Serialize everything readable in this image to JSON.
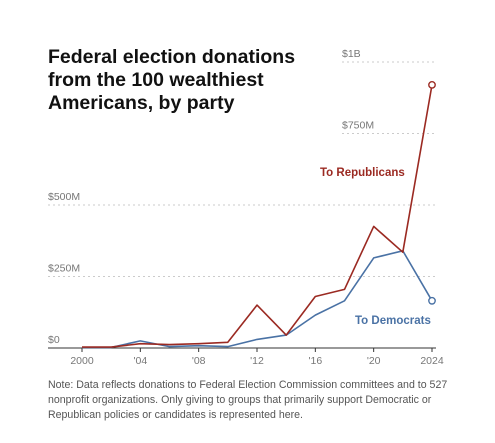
{
  "chart_data": {
    "type": "line",
    "title": "Federal election donations from the 100 wealthiest Americans, by party",
    "xlabel": "",
    "ylabel": "",
    "x": [
      2000,
      2002,
      2004,
      2006,
      2008,
      2010,
      2012,
      2014,
      2016,
      2018,
      2020,
      2022,
      2024
    ],
    "x_tick_labels": [
      "2000",
      "'04",
      "'08",
      "'12",
      "'16",
      "'20",
      "2024"
    ],
    "x_tick_values": [
      2000,
      2004,
      2008,
      2012,
      2016,
      2020,
      2024
    ],
    "y_tick_labels": [
      "$0",
      "$250M",
      "$500M",
      "$750M",
      "$1B"
    ],
    "y_tick_values": [
      0,
      250,
      500,
      750,
      1000
    ],
    "ylim": [
      0,
      1000
    ],
    "xlim": [
      2000,
      2024
    ],
    "y_units": "millions of dollars",
    "grid": "horizontal dashed",
    "series": [
      {
        "name": "To Republicans",
        "color": "#9b2a22",
        "values": [
          3,
          3,
          15,
          12,
          15,
          20,
          150,
          45,
          180,
          205,
          425,
          335,
          920
        ]
      },
      {
        "name": "To Democrats",
        "color": "#4a72a5",
        "values": [
          2,
          2,
          25,
          5,
          8,
          5,
          30,
          45,
          115,
          165,
          315,
          340,
          165
        ]
      }
    ],
    "note": "Note: Data reflects donations to Federal Election Commission committees and to 527 nonprofit organizations. Only giving to groups that primarily support Democratic or Republican policies or candidates is represented here."
  }
}
